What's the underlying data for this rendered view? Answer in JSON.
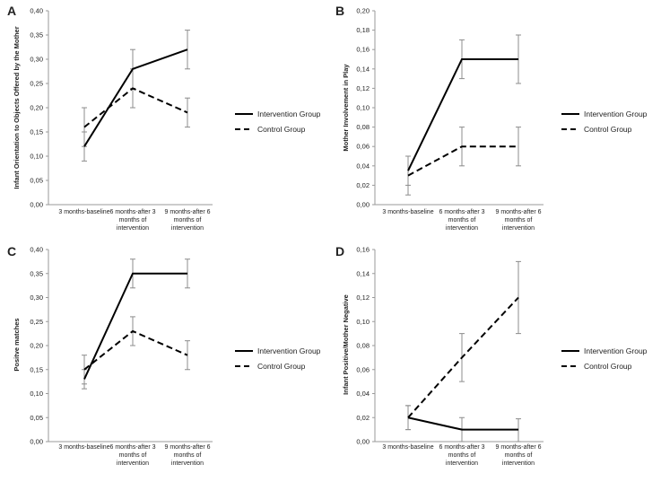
{
  "legend": {
    "intervention": "Intervention Group",
    "control": "Control Group"
  },
  "chart_data": [
    {
      "panel": "A",
      "type": "line",
      "ylabel": "Infant Orientation to Objects Offered by the Mother",
      "ylim": [
        0,
        0.4
      ],
      "yticks": [
        "0,00",
        "0,05",
        "0,10",
        "0,15",
        "0,20",
        "0,25",
        "0,30",
        "0,35",
        "0,40"
      ],
      "categories": [
        [
          "3 months-baseline"
        ],
        [
          "6 months-after 3",
          "months of",
          "intervention"
        ],
        [
          "9 months-after 6",
          "months of",
          "intervention"
        ]
      ],
      "series": [
        {
          "name": "Intervention Group",
          "style": "solid",
          "values": [
            0.12,
            0.28,
            0.32
          ],
          "err_low": [
            0.09,
            0.24,
            0.28
          ],
          "err_high": [
            0.15,
            0.32,
            0.36
          ]
        },
        {
          "name": "Control Group",
          "style": "dashed",
          "values": [
            0.16,
            0.24,
            0.19
          ],
          "err_low": [
            0.12,
            0.2,
            0.16
          ],
          "err_high": [
            0.2,
            0.28,
            0.22
          ]
        }
      ]
    },
    {
      "panel": "B",
      "type": "line",
      "ylabel": "Mother Involvement in Play",
      "ylim": [
        0,
        0.2
      ],
      "yticks": [
        "0,00",
        "0,02",
        "0,04",
        "0,06",
        "0,08",
        "0,10",
        "0,12",
        "0,14",
        "0,16",
        "0,18",
        "0,20"
      ],
      "categories": [
        [
          "3 months-baseline"
        ],
        [
          "6 months-after 3",
          "months of",
          "intervention"
        ],
        [
          "9 months-after 6",
          "months of",
          "intervention"
        ]
      ],
      "series": [
        {
          "name": "Intervention Group",
          "style": "solid",
          "values": [
            0.035,
            0.15,
            0.15
          ],
          "err_low": [
            0.02,
            0.13,
            0.125
          ],
          "err_high": [
            0.05,
            0.17,
            0.175
          ]
        },
        {
          "name": "Control Group",
          "style": "dashed",
          "values": [
            0.03,
            0.06,
            0.06
          ],
          "err_low": [
            0.01,
            0.04,
            0.04
          ],
          "err_high": [
            0.05,
            0.08,
            0.08
          ]
        }
      ]
    },
    {
      "panel": "C",
      "type": "line",
      "ylabel": "Positve matches",
      "ylim": [
        0,
        0.4
      ],
      "yticks": [
        "0,00",
        "0,05",
        "0,10",
        "0,15",
        "0,20",
        "0,25",
        "0,30",
        "0,35",
        "0,40"
      ],
      "categories": [
        [
          "3 months-baseline"
        ],
        [
          "6 months-after 3",
          "months of",
          "intervention"
        ],
        [
          "9 months-after 6",
          "months of",
          "intervention"
        ]
      ],
      "series": [
        {
          "name": "Intervention Group",
          "style": "solid",
          "values": [
            0.13,
            0.35,
            0.35
          ],
          "err_low": [
            0.11,
            0.32,
            0.32
          ],
          "err_high": [
            0.15,
            0.38,
            0.38
          ]
        },
        {
          "name": "Control Group",
          "style": "dashed",
          "values": [
            0.15,
            0.23,
            0.18
          ],
          "err_low": [
            0.12,
            0.2,
            0.15
          ],
          "err_high": [
            0.18,
            0.26,
            0.21
          ]
        }
      ]
    },
    {
      "panel": "D",
      "type": "line",
      "ylabel": "Infant Positive/Mother Negative",
      "ylim": [
        0,
        0.16
      ],
      "yticks": [
        "0,00",
        "0,02",
        "0,04",
        "0,06",
        "0,08",
        "0,10",
        "0,12",
        "0,14",
        "0,16"
      ],
      "categories": [
        [
          "3 months-baseline"
        ],
        [
          "6 months-after 3",
          "months of",
          "intervention"
        ],
        [
          "9 months-after 6",
          "months of",
          "intervention"
        ]
      ],
      "series": [
        {
          "name": "Intervention Group",
          "style": "solid",
          "values": [
            0.02,
            0.01,
            0.01
          ],
          "err_low": [
            0.01,
            0.0,
            0.0
          ],
          "err_high": [
            0.03,
            0.02,
            0.019
          ]
        },
        {
          "name": "Control Group",
          "style": "dashed",
          "values": [
            0.02,
            0.07,
            0.12
          ],
          "err_low": [
            0.01,
            0.05,
            0.09
          ],
          "err_high": [
            0.03,
            0.09,
            0.15
          ]
        }
      ]
    }
  ]
}
